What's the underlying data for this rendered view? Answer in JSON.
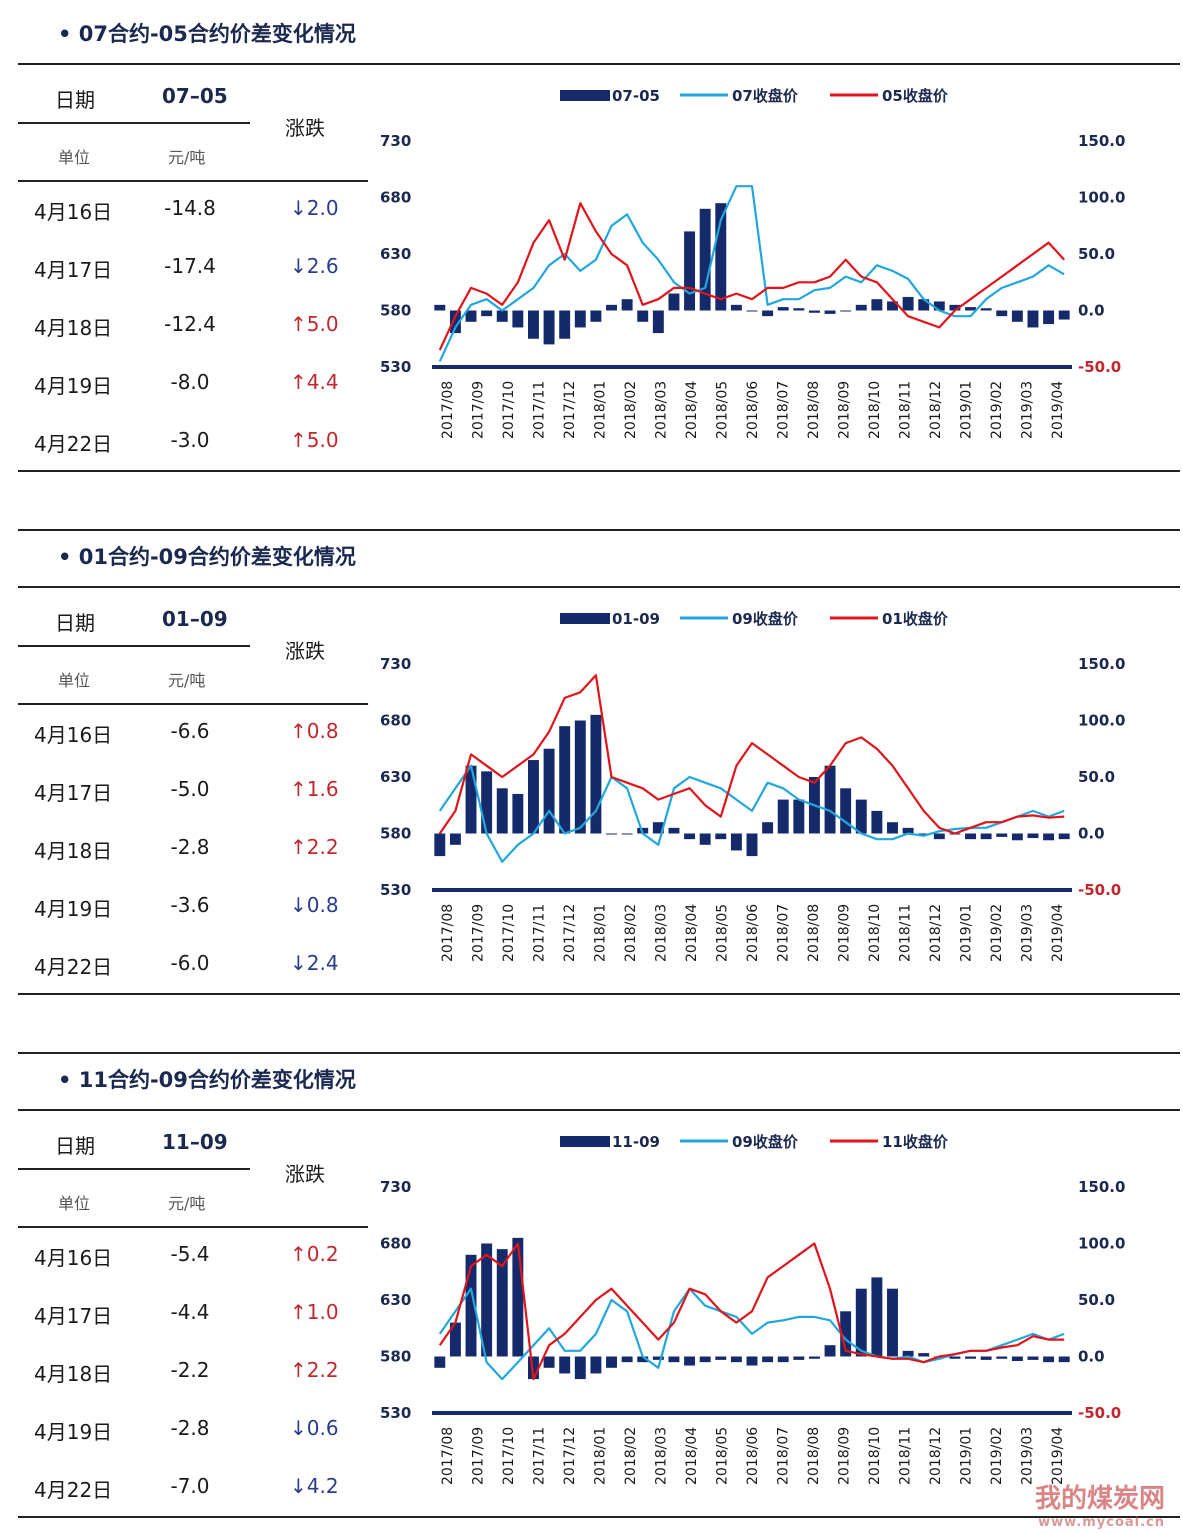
{
  "sections": [
    {
      "title": "• 07合约-05合约价差变化情况",
      "table": {
        "col_date": "日期",
        "col_code": "07–05",
        "col_change": "涨跌",
        "unit_label": "单位",
        "unit_value": "元/吨",
        "rows": [
          {
            "date": "4月16日",
            "value": "-14.8",
            "change": "↓2.0",
            "dir": "down"
          },
          {
            "date": "4月17日",
            "value": "-17.4",
            "change": "↓2.6",
            "dir": "down"
          },
          {
            "date": "4月18日",
            "value": "-12.4",
            "change": "↑5.0",
            "dir": "up"
          },
          {
            "date": "4月19日",
            "value": "-8.0",
            "change": "↑4.4",
            "dir": "up"
          },
          {
            "date": "4月22日",
            "value": "-3.0",
            "change": "↑5.0",
            "dir": "up"
          }
        ]
      }
    },
    {
      "title": "• 01合约-09合约价差变化情况",
      "table": {
        "col_date": "日期",
        "col_code": "01–09",
        "col_change": "涨跌",
        "unit_label": "单位",
        "unit_value": "元/吨",
        "rows": [
          {
            "date": "4月16日",
            "value": "-6.6",
            "change": "↑0.8",
            "dir": "up"
          },
          {
            "date": "4月17日",
            "value": "-5.0",
            "change": "↑1.6",
            "dir": "up"
          },
          {
            "date": "4月18日",
            "value": "-2.8",
            "change": "↑2.2",
            "dir": "up"
          },
          {
            "date": "4月19日",
            "value": "-3.6",
            "change": "↓0.8",
            "dir": "down"
          },
          {
            "date": "4月22日",
            "value": "-6.0",
            "change": "↓2.4",
            "dir": "down"
          }
        ]
      }
    },
    {
      "title": "• 11合约-09合约价差变化情况",
      "table": {
        "col_date": "日期",
        "col_code": "11–09",
        "col_change": "涨跌",
        "unit_label": "单位",
        "unit_value": "元/吨",
        "rows": [
          {
            "date": "4月16日",
            "value": "-5.4",
            "change": "↑0.2",
            "dir": "up"
          },
          {
            "date": "4月17日",
            "value": "-4.4",
            "change": "↑1.0",
            "dir": "up"
          },
          {
            "date": "4月18日",
            "value": "-2.2",
            "change": "↑2.2",
            "dir": "up"
          },
          {
            "date": "4月19日",
            "value": "-2.8",
            "change": "↓0.6",
            "dir": "down"
          },
          {
            "date": "4月22日",
            "value": "-7.0",
            "change": "↓4.2",
            "dir": "down"
          }
        ]
      }
    }
  ],
  "watermark": {
    "text": "我的煤炭网",
    "url": "www.mycoal.cn"
  },
  "chart_data": [
    {
      "type": "bar",
      "legend": [
        "07-05",
        "07收盘价",
        "05收盘价"
      ],
      "colors": {
        "bar": "#142a6b",
        "line1": "#22a7dc",
        "line2": "#e0141b"
      },
      "x_ticks": [
        "2017/08",
        "2017/09",
        "2017/10",
        "2017/11",
        "2017/12",
        "2018/01",
        "2018/02",
        "2018/03",
        "2018/04",
        "2018/05",
        "2018/06",
        "2018/07",
        "2018/08",
        "2018/09",
        "2018/10",
        "2018/11",
        "2018/12",
        "2019/01",
        "2019/02",
        "2019/03",
        "2019/04"
      ],
      "y_left_ticks": [
        "730",
        "680",
        "630",
        "580",
        "530"
      ],
      "y_right_ticks": [
        "150.0",
        "100.0",
        "50.0",
        "0.0",
        "-50.0"
      ],
      "ylim_left": [
        530,
        730
      ],
      "ylim_right": [
        -50,
        150
      ],
      "series": [
        {
          "name": "07-05",
          "kind": "bar",
          "values": [
            5,
            -20,
            -10,
            -5,
            -10,
            -15,
            -25,
            -30,
            -25,
            -15,
            -10,
            5,
            10,
            -10,
            -20,
            15,
            70,
            90,
            95,
            5,
            0,
            -5,
            3,
            2,
            -2,
            -3,
            0,
            5,
            10,
            8,
            12,
            10,
            8,
            5,
            3,
            2,
            -5,
            -10,
            -15,
            -12,
            -8
          ]
        },
        {
          "name": "07收盘价",
          "kind": "line",
          "values": [
            535,
            565,
            585,
            590,
            580,
            590,
            600,
            620,
            630,
            615,
            625,
            655,
            665,
            640,
            625,
            605,
            595,
            600,
            660,
            690,
            690,
            585,
            590,
            590,
            598,
            600,
            610,
            605,
            620,
            615,
            608,
            590,
            580,
            575,
            575,
            590,
            600,
            605,
            610,
            620,
            612
          ]
        },
        {
          "name": "05收盘价",
          "kind": "line",
          "values": [
            545,
            575,
            600,
            595,
            585,
            605,
            640,
            660,
            625,
            675,
            650,
            630,
            620,
            585,
            590,
            600,
            600,
            595,
            590,
            595,
            590,
            600,
            600,
            605,
            605,
            610,
            625,
            610,
            605,
            590,
            575,
            570,
            565,
            580,
            590,
            600,
            610,
            620,
            630,
            640,
            625
          ]
        }
      ]
    },
    {
      "type": "bar",
      "legend": [
        "01-09",
        "09收盘价",
        "01收盘价"
      ],
      "colors": {
        "bar": "#142a6b",
        "line1": "#22a7dc",
        "line2": "#e0141b"
      },
      "x_ticks": [
        "2017/08",
        "2017/09",
        "2017/10",
        "2017/11",
        "2017/12",
        "2018/01",
        "2018/02",
        "2018/03",
        "2018/04",
        "2018/05",
        "2018/06",
        "2018/07",
        "2018/08",
        "2018/09",
        "2018/10",
        "2018/11",
        "2018/12",
        "2019/01",
        "2019/02",
        "2019/03",
        "2019/04"
      ],
      "y_left_ticks": [
        "730",
        "680",
        "630",
        "580",
        "530"
      ],
      "y_right_ticks": [
        "150.0",
        "100.0",
        "50.0",
        "0.0",
        "-50.0"
      ],
      "ylim_left": [
        530,
        730
      ],
      "ylim_right": [
        -50,
        150
      ],
      "series": [
        {
          "name": "01-09",
          "kind": "bar",
          "values": [
            -20,
            -10,
            60,
            55,
            40,
            35,
            65,
            75,
            95,
            100,
            105,
            0,
            0,
            5,
            10,
            5,
            -5,
            -10,
            -5,
            -15,
            -20,
            10,
            30,
            30,
            50,
            60,
            40,
            30,
            20,
            10,
            5,
            0,
            -5,
            0,
            -5,
            -5,
            -3,
            -6,
            -4,
            -6,
            -5
          ]
        },
        {
          "name": "09收盘价",
          "kind": "line",
          "values": [
            600,
            620,
            640,
            580,
            555,
            570,
            580,
            600,
            580,
            585,
            600,
            630,
            620,
            580,
            570,
            620,
            630,
            625,
            620,
            610,
            600,
            625,
            620,
            610,
            605,
            600,
            590,
            580,
            575,
            575,
            580,
            578,
            582,
            584,
            585,
            585,
            590,
            595,
            600,
            595,
            600
          ]
        },
        {
          "name": "01收盘价",
          "kind": "line",
          "values": [
            580,
            600,
            650,
            640,
            630,
            640,
            650,
            670,
            700,
            705,
            720,
            630,
            625,
            620,
            610,
            615,
            620,
            605,
            595,
            640,
            660,
            650,
            640,
            630,
            625,
            640,
            660,
            665,
            655,
            640,
            620,
            600,
            585,
            580,
            585,
            590,
            590,
            595,
            596,
            594,
            595
          ]
        }
      ]
    },
    {
      "type": "bar",
      "legend": [
        "11-09",
        "09收盘价",
        "11收盘价"
      ],
      "colors": {
        "bar": "#142a6b",
        "line1": "#22a7dc",
        "line2": "#e0141b"
      },
      "x_ticks": [
        "2017/08",
        "2017/09",
        "2017/10",
        "2017/11",
        "2017/12",
        "2018/01",
        "2018/02",
        "2018/03",
        "2018/04",
        "2018/05",
        "2018/06",
        "2018/07",
        "2018/08",
        "2018/09",
        "2018/10",
        "2018/11",
        "2018/12",
        "2019/01",
        "2019/02",
        "2019/03",
        "2019/04"
      ],
      "y_left_ticks": [
        "730",
        "680",
        "630",
        "580",
        "530"
      ],
      "y_right_ticks": [
        "150.0",
        "100.0",
        "50.0",
        "0.0",
        "-50.0"
      ],
      "ylim_left": [
        530,
        730
      ],
      "ylim_right": [
        -50,
        150
      ],
      "series": [
        {
          "name": "11-09",
          "kind": "bar",
          "values": [
            -10,
            30,
            90,
            100,
            95,
            105,
            -20,
            -10,
            -15,
            -20,
            -15,
            -10,
            -5,
            -5,
            -3,
            -5,
            -8,
            -5,
            -3,
            -5,
            -8,
            -5,
            -5,
            -3,
            -2,
            10,
            40,
            60,
            70,
            60,
            5,
            3,
            0,
            -2,
            -2,
            -3,
            -2,
            -4,
            -3,
            -5,
            -5
          ]
        },
        {
          "name": "09收盘价",
          "kind": "line",
          "values": [
            600,
            620,
            640,
            575,
            560,
            575,
            590,
            605,
            585,
            585,
            600,
            630,
            620,
            580,
            570,
            620,
            640,
            625,
            620,
            615,
            600,
            610,
            612,
            615,
            615,
            612,
            595,
            585,
            580,
            578,
            580,
            575,
            578,
            582,
            585,
            585,
            590,
            595,
            600,
            595,
            600
          ]
        },
        {
          "name": "11收盘价",
          "kind": "line",
          "values": [
            590,
            610,
            660,
            670,
            660,
            680,
            560,
            590,
            600,
            615,
            630,
            640,
            625,
            610,
            595,
            610,
            640,
            635,
            620,
            610,
            620,
            650,
            660,
            670,
            680,
            640,
            585,
            582,
            580,
            578,
            578,
            575,
            580,
            582,
            585,
            585,
            588,
            590,
            598,
            595,
            595
          ]
        }
      ]
    }
  ]
}
